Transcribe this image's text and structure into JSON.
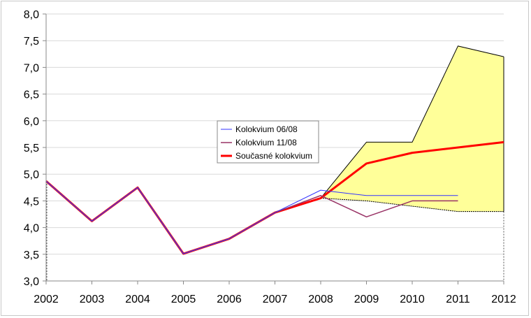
{
  "chart_data": {
    "type": "line",
    "title": "",
    "xlabel": "",
    "ylabel": "",
    "x": [
      2002,
      2003,
      2004,
      2005,
      2006,
      2007,
      2008,
      2009,
      2010,
      2011,
      2012
    ],
    "x_tick_labels": [
      "2002",
      "2003",
      "2004",
      "2005",
      "2006",
      "2007",
      "2008",
      "2009",
      "2010",
      "2011",
      "2012"
    ],
    "y_tick_labels": [
      "3,0",
      "3,5",
      "4,0",
      "4,5",
      "5,0",
      "5,5",
      "6,0",
      "6,5",
      "7,0",
      "7,5",
      "8,0"
    ],
    "ylim": [
      3.0,
      8.0
    ],
    "grid": true,
    "legend_placement": "center",
    "band": {
      "name": "interval",
      "color": "#ffff99",
      "x": [
        2008,
        2009,
        2010,
        2011,
        2012
      ],
      "upper": [
        4.55,
        5.6,
        5.6,
        7.4,
        7.2
      ],
      "lower": [
        4.55,
        4.5,
        4.4,
        4.3,
        4.3
      ]
    },
    "series": [
      {
        "name": "Kolokvium 06/08",
        "color": "#3333ff",
        "width": 1,
        "x": [
          2002,
          2003,
          2004,
          2005,
          2006,
          2007,
          2008,
          2009,
          2010,
          2011
        ],
        "values": [
          4.87,
          4.12,
          4.75,
          3.51,
          3.79,
          4.28,
          4.7,
          4.6,
          4.6,
          4.6
        ]
      },
      {
        "name": "Kolokvium 11/08",
        "color": "#993366",
        "width": 1.5,
        "x": [
          2002,
          2003,
          2004,
          2005,
          2006,
          2007,
          2008,
          2009,
          2010,
          2011
        ],
        "values": [
          4.87,
          4.12,
          4.75,
          3.51,
          3.79,
          4.28,
          4.6,
          4.2,
          4.5,
          4.5
        ]
      },
      {
        "name": "Současné kolokvium",
        "color": "#ff0000",
        "width": 3,
        "x": [
          2002,
          2003,
          2004,
          2005,
          2006,
          2007,
          2008,
          2009,
          2010,
          2011,
          2012
        ],
        "values": [
          4.87,
          4.12,
          4.75,
          3.51,
          3.79,
          4.28,
          4.55,
          5.2,
          5.4,
          5.5,
          5.6
        ]
      }
    ]
  }
}
